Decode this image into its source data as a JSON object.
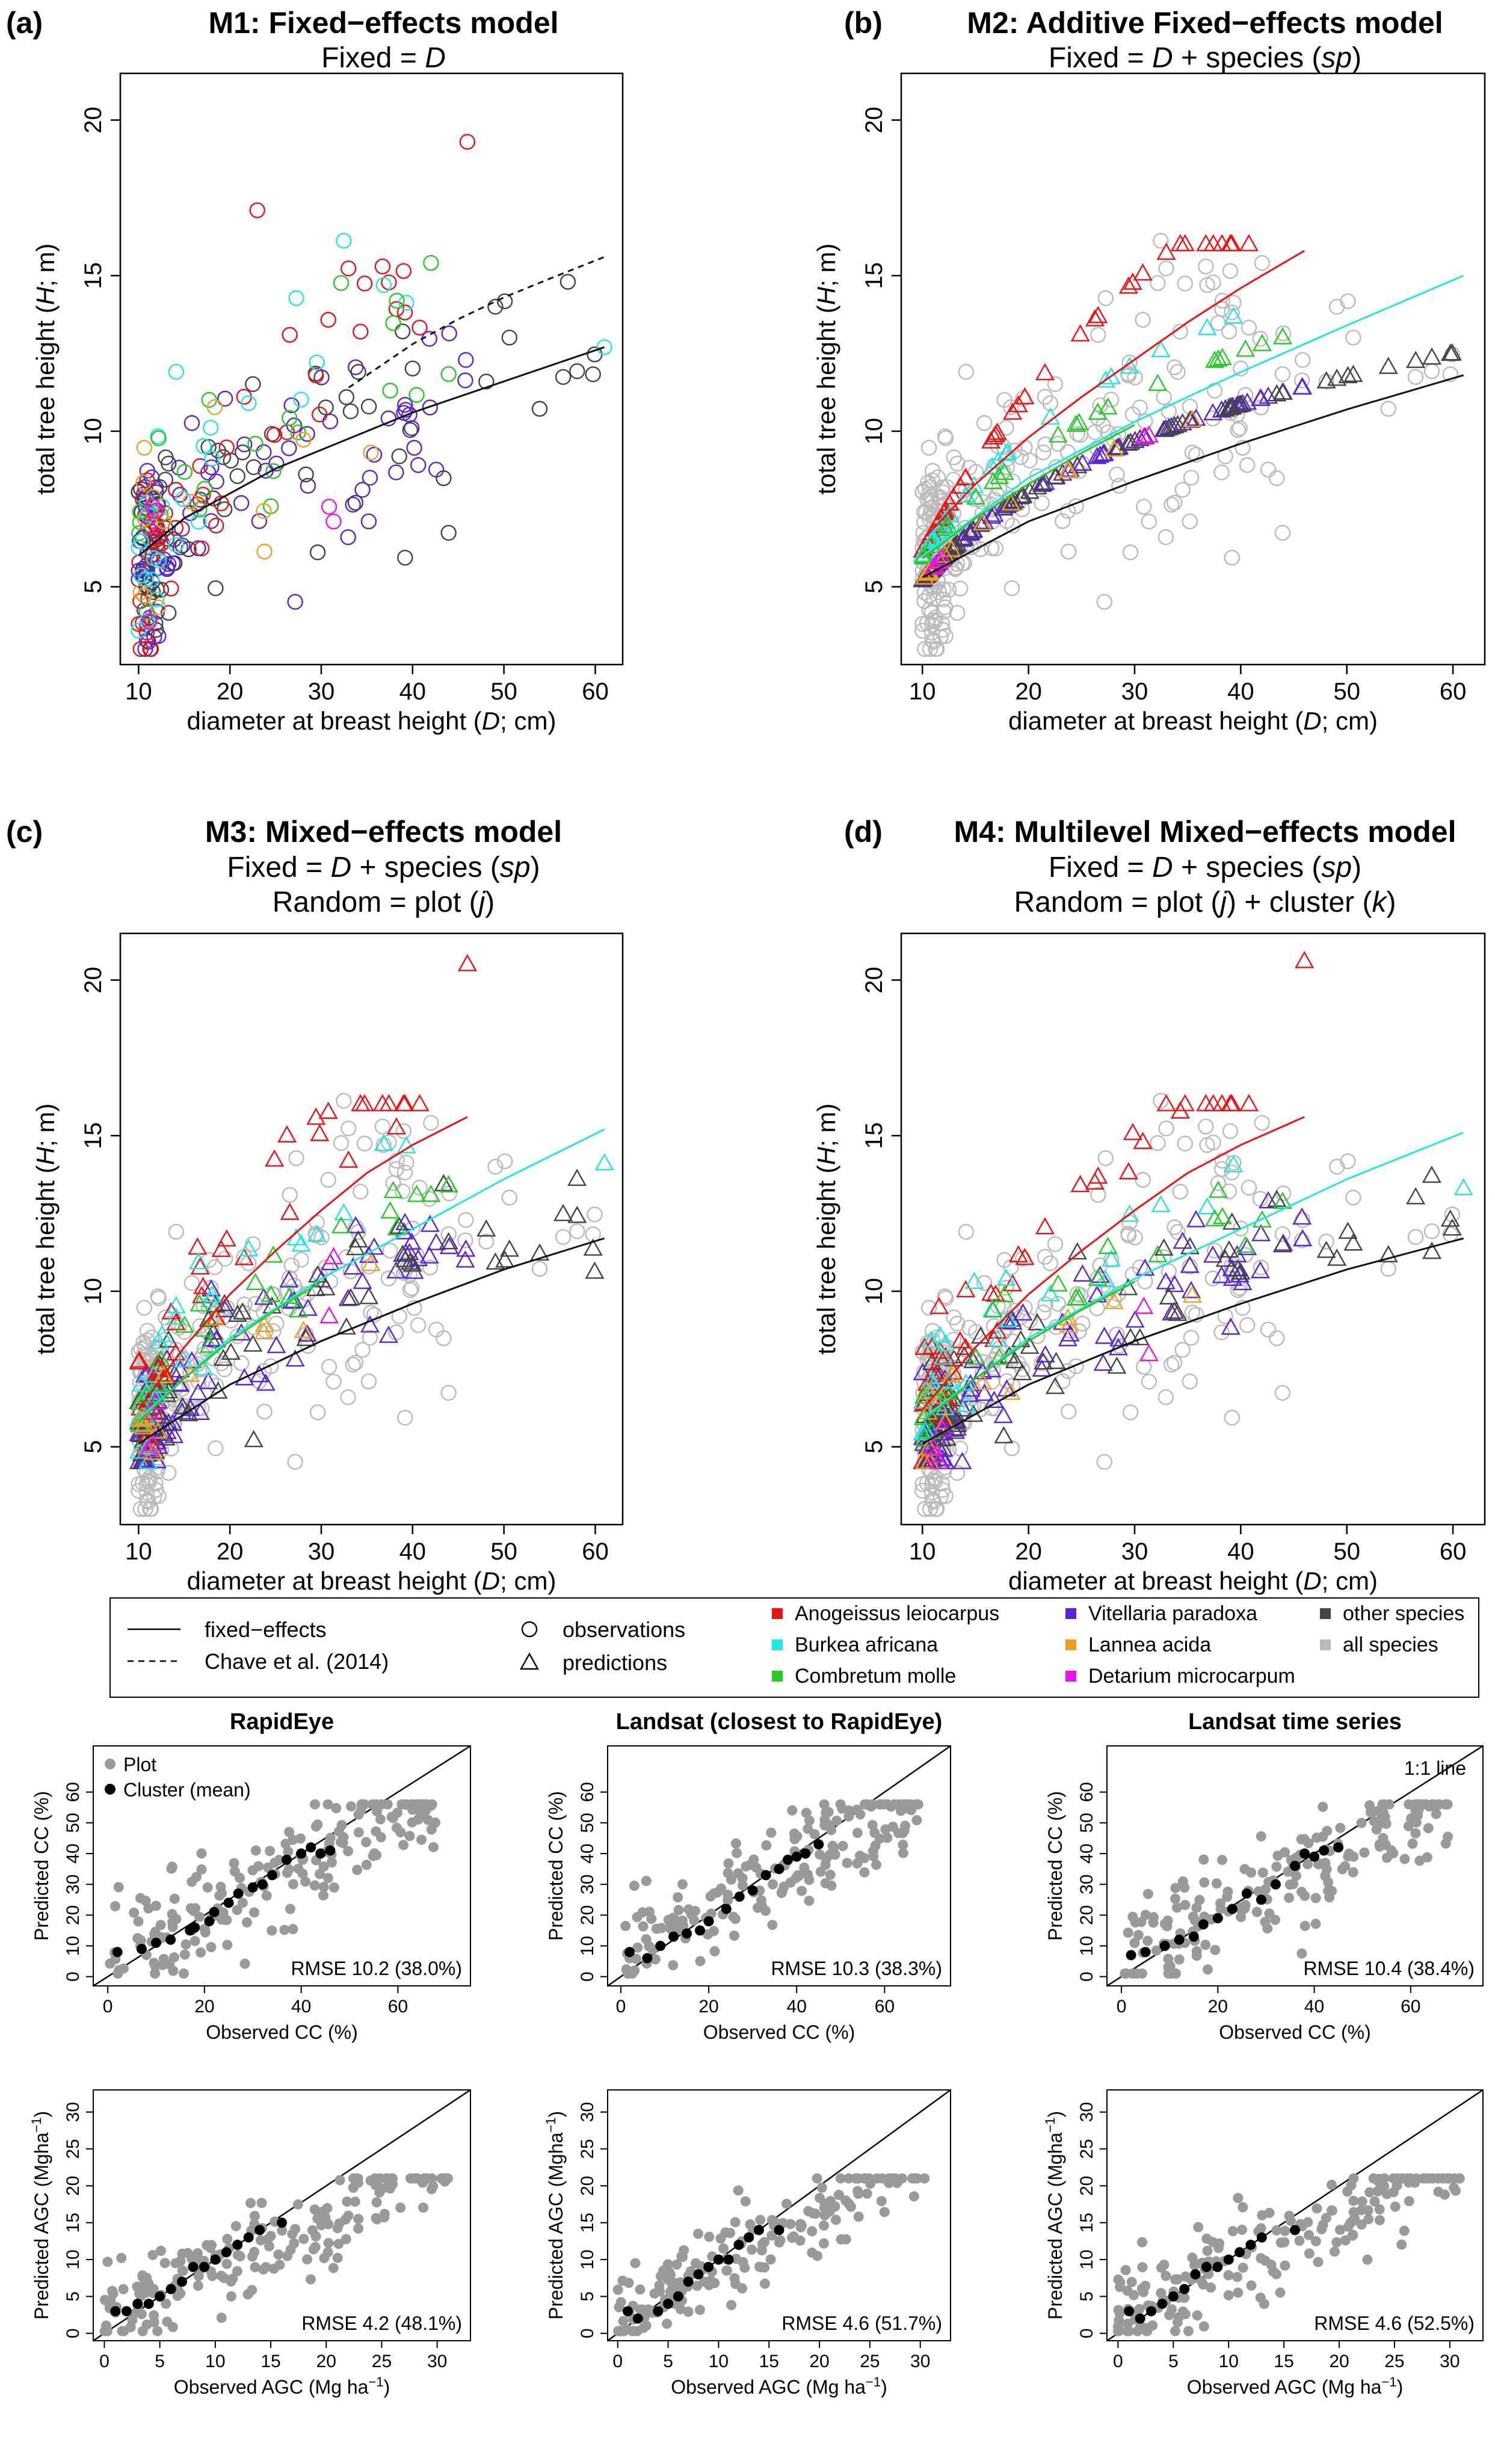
{
  "legend": {
    "line_items": [
      "fixed−effects",
      "Chave et al. (2014)"
    ],
    "marker_items": [
      "observations",
      "predictions"
    ],
    "species": [
      {
        "name": "Anogeissus leiocarpus",
        "color": "#ee1111"
      },
      {
        "name": "Burkea africana",
        "color": "#22e5e5"
      },
      {
        "name": "Combretum molle",
        "color": "#22cc22"
      },
      {
        "name": "Vitellaria paradoxa",
        "color": "#5a22dd"
      },
      {
        "name": "Lannea acida",
        "color": "#f0a020"
      },
      {
        "name": "Detarium microcarpum",
        "color": "#ee11ee"
      },
      {
        "name": "other species",
        "color": "#444444"
      },
      {
        "name": "all species",
        "color": "#bbbbbb"
      }
    ]
  },
  "chart_data": [
    {
      "type": "scatter",
      "panel": "(a)",
      "title": "M1: Fixed−effects model",
      "subtitle": [
        "Fixed = D"
      ],
      "xlabel": "diameter at breast height (D; cm)",
      "ylabel": "total tree height (H; m)",
      "xlim": [
        8,
        63
      ],
      "ylim": [
        2.5,
        21.5
      ],
      "xticks": [
        10,
        20,
        30,
        40,
        50,
        60
      ],
      "yticks": [
        5,
        10,
        15,
        20
      ],
      "observations_colored_by_species": true,
      "series": [
        {
          "name": "fixed−effects",
          "x": [
            10,
            15,
            20,
            25,
            30,
            35,
            40,
            45,
            50,
            55,
            61
          ],
          "y": [
            6.0,
            7.2,
            8.0,
            8.8,
            9.4,
            10.0,
            10.6,
            11.1,
            11.6,
            12.1,
            12.7
          ]
        },
        {
          "name": "Chave et al. (2014)",
          "x": [
            33,
            40,
            45,
            50,
            55,
            61
          ],
          "y": [
            11.4,
            12.8,
            13.6,
            14.3,
            14.9,
            15.6
          ]
        }
      ],
      "highlight_points": [
        {
          "x": 46,
          "y": 19.3
        },
        {
          "x": 23,
          "y": 17.1
        },
        {
          "x": 57,
          "y": 14.8
        },
        {
          "x": 61,
          "y": 12.7
        }
      ]
    },
    {
      "type": "scatter",
      "panel": "(b)",
      "title": "M2: Additive Fixed−effects model",
      "subtitle": [
        "Fixed = D + species (sp)"
      ],
      "xlabel": "diameter at breast height (D; cm)",
      "ylabel": "total tree height (H; m)",
      "xlim": [
        8,
        63
      ],
      "ylim": [
        2.5,
        21.5
      ],
      "xticks": [
        10,
        20,
        30,
        40,
        50,
        60
      ],
      "yticks": [
        5,
        10,
        15,
        20
      ],
      "series": [
        {
          "name": "Anogeissus leiocarpus",
          "x": [
            10,
            15,
            20,
            25,
            30,
            35,
            40,
            46
          ],
          "y": [
            6.5,
            8.3,
            9.8,
            11.1,
            12.3,
            13.5,
            14.6,
            15.8
          ]
        },
        {
          "name": "Burkea africana",
          "x": [
            10,
            20,
            30,
            40,
            50,
            61
          ],
          "y": [
            6.0,
            8.5,
            10.3,
            11.9,
            13.4,
            15.0
          ]
        },
        {
          "name": "Combretum molle",
          "x": [
            10,
            15,
            20,
            25,
            30
          ],
          "y": [
            5.9,
            7.2,
            8.3,
            9.3,
            10.2
          ]
        },
        {
          "name": "other species",
          "x": [
            10,
            20,
            30,
            40,
            50,
            61
          ],
          "y": [
            5.3,
            7.1,
            8.4,
            9.6,
            10.7,
            11.8
          ]
        }
      ]
    },
    {
      "type": "scatter",
      "panel": "(c)",
      "title": "M3: Mixed−effects model",
      "subtitle": [
        "Fixed = D + species (sp)",
        "Random = plot (j)"
      ],
      "xlabel": "diameter at breast height (D; cm)",
      "ylabel": "total tree height (H; m)",
      "xlim": [
        8,
        63
      ],
      "ylim": [
        2.5,
        21.5
      ],
      "xticks": [
        10,
        20,
        30,
        40,
        50,
        60
      ],
      "yticks": [
        5,
        10,
        15,
        20
      ],
      "series": [
        {
          "name": "Anogeissus leiocarpus",
          "x": [
            10,
            15,
            20,
            25,
            30,
            35,
            40,
            46
          ],
          "y": [
            6.2,
            8.2,
            9.9,
            11.3,
            12.6,
            13.8,
            14.7,
            15.6
          ]
        },
        {
          "name": "Burkea africana",
          "x": [
            10,
            20,
            30,
            40,
            50,
            61
          ],
          "y": [
            5.9,
            8.5,
            10.4,
            12.0,
            13.6,
            15.2
          ]
        },
        {
          "name": "Combretum molle",
          "x": [
            10,
            15,
            20,
            25,
            30
          ],
          "y": [
            5.8,
            7.2,
            8.4,
            9.4,
            10.3
          ]
        },
        {
          "name": "other species",
          "x": [
            10,
            20,
            30,
            40,
            50,
            61
          ],
          "y": [
            5.1,
            7.0,
            8.4,
            9.6,
            10.7,
            11.7
          ]
        }
      ],
      "highlight_points": [
        {
          "x": 46,
          "y": 20.5
        },
        {
          "x": 61,
          "y": 14.1
        },
        {
          "x": 58,
          "y": 13.6
        }
      ]
    },
    {
      "type": "scatter",
      "panel": "(d)",
      "title": "M4: Multilevel Mixed−effects model",
      "subtitle": [
        "Fixed = D + species (sp)",
        "Random = plot (j) + cluster (k)"
      ],
      "xlabel": "diameter at breast height (D; cm)",
      "ylabel": "total tree height (H; m)",
      "xlim": [
        8,
        63
      ],
      "ylim": [
        2.5,
        21.5
      ],
      "xticks": [
        10,
        20,
        30,
        40,
        50,
        60
      ],
      "yticks": [
        5,
        10,
        15,
        20
      ],
      "series": [
        {
          "name": "Anogeissus leiocarpus",
          "x": [
            10,
            15,
            20,
            25,
            30,
            35,
            40,
            46
          ],
          "y": [
            6.2,
            8.2,
            9.9,
            11.3,
            12.6,
            13.8,
            14.7,
            15.6
          ]
        },
        {
          "name": "Burkea africana",
          "x": [
            10,
            20,
            30,
            40,
            50,
            61
          ],
          "y": [
            5.9,
            8.5,
            10.4,
            12.0,
            13.6,
            15.1
          ]
        },
        {
          "name": "Combretum molle",
          "x": [
            10,
            15,
            20,
            25,
            30
          ],
          "y": [
            5.8,
            7.2,
            8.4,
            9.4,
            10.3
          ]
        },
        {
          "name": "other species",
          "x": [
            10,
            20,
            30,
            40,
            50,
            61
          ],
          "y": [
            5.1,
            7.0,
            8.4,
            9.6,
            10.7,
            11.7
          ]
        }
      ],
      "highlight_points": [
        {
          "x": 46,
          "y": 20.6
        },
        {
          "x": 61,
          "y": 13.3
        },
        {
          "x": 58,
          "y": 13.7
        }
      ]
    },
    {
      "type": "scatter",
      "panel": "RapidEye CC",
      "title": "RapidEye",
      "xlabel": "Observed CC (%)",
      "ylabel": "Predicted CC (%)",
      "xlim": [
        -3,
        75
      ],
      "ylim": [
        -3,
        75
      ],
      "xticks": [
        0,
        20,
        40,
        60
      ],
      "yticks": [
        0,
        10,
        20,
        30,
        40,
        50,
        60
      ],
      "legend_entries": [
        "Plot",
        "Cluster (mean)"
      ],
      "annotation": "RMSE 10.2 (38.0%)",
      "clusters": {
        "x": [
          2,
          7,
          10,
          13,
          17,
          18,
          21,
          22,
          25,
          27,
          30,
          32,
          34,
          37,
          40,
          42,
          44,
          46
        ],
        "y": [
          8,
          9,
          11,
          12,
          15,
          16,
          18,
          21,
          24,
          27,
          29,
          30,
          33,
          38,
          40,
          42,
          40,
          41
        ]
      }
    },
    {
      "type": "scatter",
      "panel": "Landsat CC",
      "title": "Landsat (closest to RapidEye)",
      "xlabel": "Observed CC (%)",
      "ylabel": "Predicted CC (%)",
      "xlim": [
        -3,
        75
      ],
      "ylim": [
        -3,
        75
      ],
      "xticks": [
        0,
        20,
        40,
        60
      ],
      "yticks": [
        0,
        10,
        20,
        30,
        40,
        50,
        60
      ],
      "annotation": "RMSE 10.3 (38.3%)",
      "clusters": {
        "x": [
          2,
          6,
          9,
          12,
          15,
          18,
          20,
          24,
          27,
          30,
          33,
          36,
          38,
          40,
          42,
          45
        ],
        "y": [
          8,
          6,
          10,
          13,
          14,
          15,
          18,
          22,
          26,
          28,
          33,
          35,
          38,
          39,
          40,
          43
        ]
      }
    },
    {
      "type": "scatter",
      "panel": "Landsat time series CC",
      "title": "Landsat time series",
      "xlabel": "Observed CC (%)",
      "ylabel": "Predicted CC (%)",
      "xlim": [
        -3,
        75
      ],
      "ylim": [
        -3,
        75
      ],
      "xticks": [
        0,
        20,
        40,
        60
      ],
      "yticks": [
        0,
        10,
        20,
        30,
        40,
        50,
        60
      ],
      "annotation": "RMSE 10.4 (38.4%)",
      "line_label": "1:1 line",
      "clusters": {
        "x": [
          2,
          5,
          9,
          12,
          15,
          17,
          20,
          23,
          26,
          29,
          32,
          36,
          38,
          40,
          42,
          45
        ],
        "y": [
          7,
          8,
          10,
          12,
          13,
          17,
          19,
          22,
          27,
          25,
          30,
          36,
          40,
          39,
          41,
          42
        ]
      }
    },
    {
      "type": "scatter",
      "panel": "RapidEye AGC",
      "xlabel": "Observed AGC (Mg ha⁻¹)",
      "ylabel": "Predicted AGC (Mgha⁻¹)",
      "xlim": [
        -1,
        33
      ],
      "ylim": [
        -1,
        33
      ],
      "xticks": [
        0,
        5,
        10,
        15,
        20,
        25,
        30
      ],
      "yticks": [
        0,
        5,
        10,
        15,
        20,
        25,
        30
      ],
      "annotation": "RMSE 4.2 (48.1%)",
      "clusters": {
        "x": [
          1,
          2,
          3,
          4,
          5,
          6,
          7,
          8,
          9,
          10,
          11,
          12,
          13,
          14,
          16
        ],
        "y": [
          3,
          3,
          4,
          4,
          5,
          6,
          7,
          9,
          9,
          10,
          11,
          12,
          13,
          14,
          15
        ]
      }
    },
    {
      "type": "scatter",
      "panel": "Landsat AGC",
      "xlabel": "Observed AGC (Mg ha⁻¹)",
      "ylabel": "Predicted AGC (Mgha⁻¹)",
      "xlim": [
        -1,
        33
      ],
      "ylim": [
        -1,
        33
      ],
      "xticks": [
        0,
        5,
        10,
        15,
        20,
        25,
        30
      ],
      "yticks": [
        0,
        5,
        10,
        15,
        20,
        25,
        30
      ],
      "annotation": "RMSE 4.6 (51.7%)",
      "clusters": {
        "x": [
          1,
          2,
          4,
          5,
          6,
          7,
          8,
          9,
          10,
          11,
          12,
          13,
          14,
          16
        ],
        "y": [
          3,
          2,
          3,
          4,
          5,
          7,
          8,
          9,
          10,
          10,
          12,
          13,
          14,
          14
        ]
      }
    },
    {
      "type": "scatter",
      "panel": "Landsat time series AGC",
      "xlabel": "Observed AGC (Mg ha⁻¹)",
      "ylabel": "Predicted AGC (Mgha⁻¹)",
      "xlim": [
        -1,
        33
      ],
      "ylim": [
        -1,
        33
      ],
      "xticks": [
        0,
        5,
        10,
        15,
        20,
        25,
        30
      ],
      "yticks": [
        0,
        5,
        10,
        15,
        20,
        25,
        30
      ],
      "annotation": "RMSE 4.6 (52.5%)",
      "clusters": {
        "x": [
          1,
          2,
          3,
          4,
          5,
          6,
          7,
          8,
          9,
          10,
          11,
          12,
          13,
          16
        ],
        "y": [
          3,
          2,
          3,
          4,
          5,
          6,
          8,
          9,
          9,
          10,
          11,
          12,
          13,
          14
        ]
      }
    }
  ]
}
